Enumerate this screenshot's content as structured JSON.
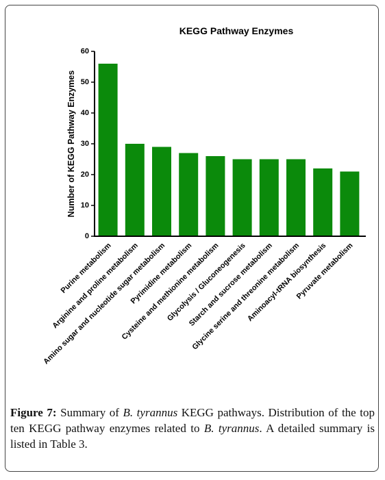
{
  "chart_data": {
    "type": "bar",
    "title": "KEGG Pathway Enzymes",
    "y_label": "Number of KEGG Pathway Enzymes",
    "categories": [
      "Purine metabolism",
      "Arginine and proline metabolism",
      "Amino sugar and nucleotide sugar metabolism",
      "Pyrimidine metabolism",
      "Cysteine and methionine metabolism",
      "Glycolysis / Gluconeogenesis",
      "Starch and sucrose metabolism",
      "Glycine serine and threonine metabolism",
      "Aminoacyl-tRNA biosynthesis",
      "Pyruvate metabolism"
    ],
    "values": [
      56,
      30,
      29,
      27,
      26,
      25,
      25,
      25,
      22,
      21
    ],
    "color": "#0b8a0b",
    "ylim": [
      0,
      60
    ],
    "yticks": [
      0,
      10,
      20,
      30,
      40,
      50,
      60
    ],
    "grid": false
  },
  "caption": {
    "label": "Figure 7:",
    "parts": [
      {
        "text": " Summary of ",
        "italic": false
      },
      {
        "text": "B. tyrannus",
        "italic": true
      },
      {
        "text": " KEGG pathways. Distribution of the top ten KEGG pathway enzymes related to ",
        "italic": false
      },
      {
        "text": "B. tyrannus",
        "italic": true
      },
      {
        "text": ". A detailed summary is listed in Table 3.",
        "italic": false
      }
    ]
  }
}
